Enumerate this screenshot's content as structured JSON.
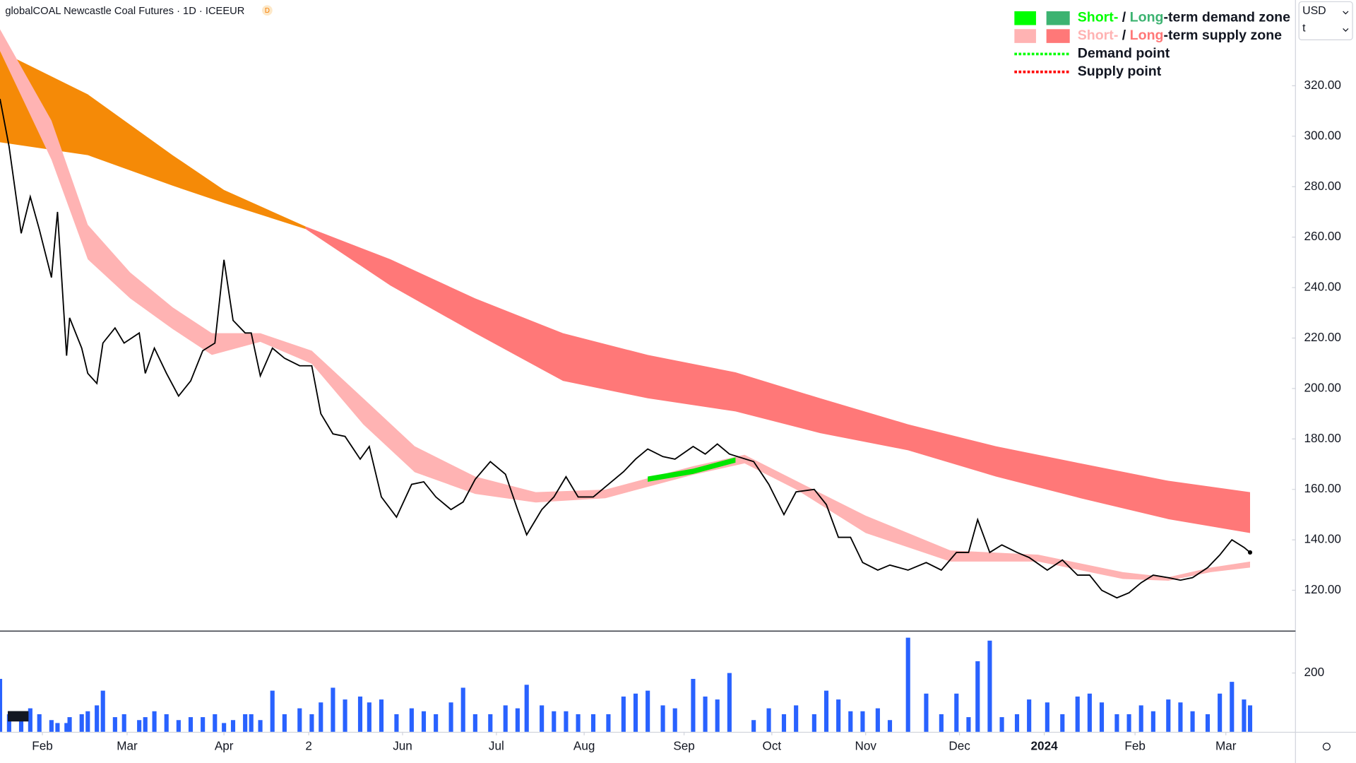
{
  "chart_data": [
    {
      "type": "line",
      "title": "globalCOAL Newcastle Coal Futures · 1D · ICEEUR",
      "badge": "D",
      "axis_units": [
        "USD",
        "t"
      ],
      "xlim": [
        0,
        428
      ],
      "xticks": [
        {
          "value": 14,
          "label": "Feb"
        },
        {
          "value": 42,
          "label": "Mar"
        },
        {
          "value": 74,
          "label": "Apr"
        },
        {
          "value": 102,
          "label": "2"
        },
        {
          "value": 133,
          "label": "Jun"
        },
        {
          "value": 164,
          "label": "Jul"
        },
        {
          "value": 193,
          "label": "Aug"
        },
        {
          "value": 226,
          "label": "Sep"
        },
        {
          "value": 255,
          "label": "Oct"
        },
        {
          "value": 286,
          "label": "Nov"
        },
        {
          "value": 317,
          "label": "Dec"
        },
        {
          "value": 345,
          "label": "2024"
        },
        {
          "value": 375,
          "label": "Feb"
        },
        {
          "value": 405,
          "label": "Mar"
        }
      ],
      "ylim": [
        104,
        354
      ],
      "yticks": [
        {
          "value": 120,
          "label": "120.00"
        },
        {
          "value": 140,
          "label": "140.00"
        },
        {
          "value": 160,
          "label": "160.00"
        },
        {
          "value": 180,
          "label": "180.00"
        },
        {
          "value": 200,
          "label": "200.00"
        },
        {
          "value": 220,
          "label": "220.00"
        },
        {
          "value": 240,
          "label": "240.00"
        },
        {
          "value": 260,
          "label": "260.00"
        },
        {
          "value": 280,
          "label": "280.00"
        },
        {
          "value": 300,
          "label": "300.00"
        },
        {
          "value": 320,
          "label": "320.00"
        }
      ],
      "x": [
        0,
        3,
        7,
        10,
        13,
        17,
        19,
        22,
        23,
        27,
        29,
        32,
        34,
        38,
        41,
        46,
        48,
        51,
        55,
        59,
        63,
        67,
        71,
        74,
        77,
        81,
        83,
        86,
        90,
        94,
        99,
        103,
        106,
        110,
        114,
        119,
        122,
        126,
        131,
        136,
        140,
        144,
        149,
        153,
        157,
        162,
        167,
        171,
        174,
        179,
        183,
        187,
        191,
        196,
        201,
        206,
        210,
        214,
        219,
        223,
        229,
        233,
        237,
        241,
        249,
        254,
        259,
        263,
        269,
        273,
        277,
        281,
        285,
        290,
        294,
        300,
        306,
        311,
        316,
        320,
        323,
        327,
        331,
        336,
        340,
        346,
        351,
        356,
        360,
        364,
        369,
        373,
        377,
        381,
        386,
        390,
        394,
        399,
        403,
        407,
        411,
        413
      ],
      "series": [
        {
          "color": "#000000",
          "values": [
            314.8,
            295.9,
            261.5,
            276,
            263,
            244,
            270,
            213,
            228,
            216,
            206,
            202,
            218,
            224,
            218,
            222,
            206,
            216,
            206,
            197,
            203,
            215,
            218,
            251,
            227,
            222,
            222,
            205,
            216,
            212,
            209,
            209,
            190,
            182,
            181,
            172,
            177,
            157,
            149,
            162,
            163,
            157,
            152,
            155,
            164,
            171,
            166,
            152,
            142,
            152,
            157,
            165,
            157,
            157,
            162,
            167,
            172,
            176,
            173,
            172,
            177,
            174,
            178,
            174,
            171,
            162,
            150,
            159,
            160,
            154,
            141,
            141,
            131,
            128,
            130,
            128,
            131,
            128,
            135,
            135,
            148,
            135,
            138,
            135,
            133,
            128,
            132,
            126,
            126,
            120,
            117,
            119,
            123,
            126,
            125,
            124,
            125,
            129,
            134,
            140,
            137,
            135
          ]
        }
      ],
      "bands": [
        {
          "color": "#f58a07",
          "x": [
            0,
            29,
            57,
            74,
            101
          ],
          "upper": [
            333.8,
            316.6,
            292.5,
            278.7,
            264.2
          ],
          "lower": [
            297.6,
            292.5,
            280.4,
            273.5,
            263.2
          ]
        },
        {
          "color": "#ff7878",
          "x": [
            101,
            129,
            157,
            186,
            214,
            243,
            271,
            300,
            329,
            357,
            386,
            413
          ],
          "upper": [
            264.2,
            251.2,
            235.7,
            221.9,
            213.3,
            206.4,
            196.1,
            185.8,
            177.1,
            170.3,
            163.4,
            158.9
          ],
          "lower": [
            263.2,
            240.8,
            221.9,
            203.0,
            196.1,
            190.9,
            182.3,
            175.5,
            165.1,
            156.5,
            148.2,
            142.7
          ]
        },
        {
          "color": "#ffb3b3",
          "x": [
            0,
            17,
            29,
            43,
            57,
            70,
            86,
            103,
            120,
            137,
            157,
            177,
            200,
            229,
            246,
            263,
            286,
            314,
            343,
            371,
            386,
            400,
            413
          ],
          "upper": [
            342.4,
            306.2,
            264.9,
            246.0,
            232.2,
            221.9,
            221.9,
            215.0,
            196.1,
            177.1,
            165.1,
            158.9,
            159.9,
            169.2,
            173.7,
            163.4,
            149.6,
            135.8,
            134.1,
            127.2,
            125.2,
            129.0,
            131.4
          ],
          "lower": [
            333.8,
            290.7,
            251.2,
            235.7,
            223.6,
            213.3,
            218.5,
            209.8,
            185.8,
            166.8,
            158.2,
            154.8,
            156.5,
            165.8,
            170.3,
            160.0,
            142.7,
            131.4,
            131.4,
            124.5,
            123.8,
            127.2,
            129.0
          ]
        },
        {
          "color": "#00e600",
          "x": [
            214,
            229,
            243
          ],
          "upper": [
            165.1,
            168.2,
            172.7
          ],
          "lower": [
            163.0,
            166.1,
            170.6
          ]
        }
      ],
      "legend": [
        {
          "short": "Short-",
          "sep": " / ",
          "long": "Long",
          "rest": "-term demand zone",
          "short_color": "#00ff00",
          "long_color": "#3cb371"
        },
        {
          "short": "Short-",
          "sep": " / ",
          "long": "Long",
          "rest": "-term supply zone",
          "short_color": "#ffb3b3",
          "long_color": "#ff7878"
        },
        {
          "label": "Demand point",
          "color": "#00ff00"
        },
        {
          "label": "Supply point",
          "color": "#ff0000"
        }
      ]
    },
    {
      "type": "bar",
      "color": "#2962ff",
      "xlim": [
        0,
        428
      ],
      "ylim": [
        0,
        341
      ],
      "yticks": [
        200
      ],
      "x": [
        0,
        3,
        7,
        10,
        13,
        17,
        19,
        22,
        23,
        27,
        29,
        32,
        34,
        38,
        41,
        46,
        48,
        51,
        55,
        59,
        63,
        67,
        71,
        74,
        77,
        81,
        83,
        86,
        90,
        94,
        99,
        103,
        106,
        110,
        114,
        119,
        122,
        126,
        131,
        136,
        140,
        144,
        149,
        153,
        157,
        162,
        167,
        171,
        174,
        179,
        183,
        187,
        191,
        196,
        201,
        206,
        210,
        214,
        219,
        223,
        229,
        233,
        237,
        241,
        249,
        254,
        259,
        263,
        269,
        273,
        277,
        281,
        285,
        290,
        294,
        300,
        306,
        311,
        316,
        320,
        323,
        327,
        331,
        336,
        340,
        346,
        351,
        356,
        360,
        364,
        369,
        373,
        377,
        381,
        386,
        390,
        394,
        399,
        403,
        407,
        411,
        413
      ],
      "values": [
        180,
        60,
        40,
        80,
        60,
        40,
        30,
        30,
        50,
        60,
        70,
        90,
        140,
        50,
        60,
        40,
        50,
        70,
        60,
        40,
        50,
        50,
        60,
        30,
        40,
        60,
        60,
        40,
        140,
        60,
        80,
        60,
        100,
        150,
        110,
        120,
        100,
        110,
        60,
        80,
        70,
        60,
        100,
        150,
        60,
        60,
        90,
        80,
        160,
        90,
        70,
        70,
        60,
        60,
        60,
        120,
        130,
        140,
        90,
        80,
        180,
        120,
        110,
        200,
        40,
        80,
        60,
        90,
        60,
        140,
        110,
        70,
        70,
        80,
        40,
        320,
        130,
        60,
        130,
        50,
        240,
        310,
        50,
        60,
        110,
        100,
        60,
        120,
        130,
        100,
        60,
        60,
        90,
        70,
        110,
        100,
        70,
        60,
        130,
        170,
        110,
        90
      ]
    }
  ]
}
